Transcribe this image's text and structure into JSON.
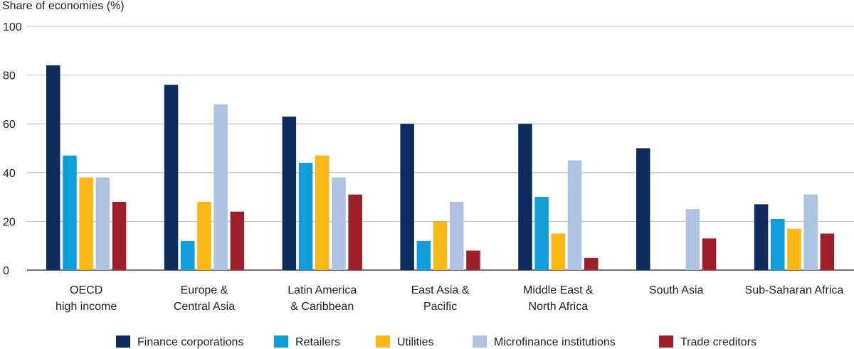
{
  "chart_data": {
    "type": "bar",
    "title": "",
    "ylabel": "Share of economies (%)",
    "xlabel": "",
    "ylim": [
      0,
      100
    ],
    "yticks": [
      0,
      20,
      40,
      60,
      80,
      100
    ],
    "grid": true,
    "legend_position": "bottom",
    "categories": [
      [
        "OECD",
        "high income"
      ],
      [
        "Europe &",
        "Central  Asia"
      ],
      [
        "Latin America",
        "& Caribbean"
      ],
      [
        "East Asia &",
        "Pacific"
      ],
      [
        "Middle East &",
        "North Africa"
      ],
      [
        "South Asia"
      ],
      [
        "Sub-Saharan Africa"
      ]
    ],
    "series": [
      {
        "name": "Finance corporations",
        "color": "#0d2b5c",
        "values": [
          84,
          76,
          63,
          60,
          60,
          50,
          27
        ]
      },
      {
        "name": "Retailers",
        "color": "#0f9ddb",
        "values": [
          47,
          12,
          44,
          12,
          30,
          null,
          21
        ]
      },
      {
        "name": "Utilities",
        "color": "#fdb714",
        "values": [
          38,
          28,
          47,
          20,
          15,
          null,
          17
        ]
      },
      {
        "name": "Microfinance institutions",
        "color": "#aec3e2",
        "values": [
          38,
          68,
          38,
          28,
          45,
          25,
          31
        ]
      },
      {
        "name": "Trade creditors",
        "color": "#9e1f2a",
        "values": [
          28,
          24,
          31,
          8,
          5,
          13,
          15
        ]
      }
    ]
  }
}
